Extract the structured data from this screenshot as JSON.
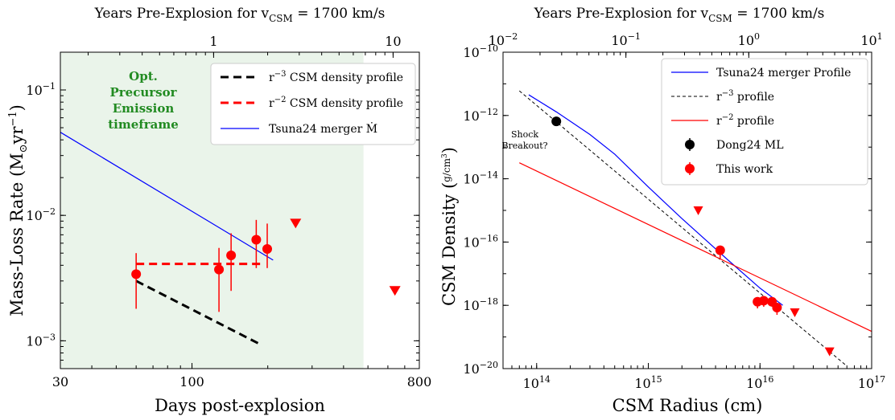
{
  "chart_data": [
    {
      "type": "scatter",
      "title": "",
      "top_axis_label": "Years Pre-Explosion for v",
      "top_axis_sub": "CSM",
      "top_axis_suffix": " = 1700 km/s",
      "xlabel": "Days post-explosion",
      "ylabel": "Mass-Loss Rate (M",
      "ylabel_suffix": "yr",
      "ylabel_exp": "−1",
      "xscale": "log",
      "yscale": "log",
      "xlim": [
        30,
        800
      ],
      "ylim": [
        0.0006,
        0.2
      ],
      "top_xlim": [
        0.14,
        14
      ],
      "x_ticks": [
        {
          "v": 30,
          "t": "30"
        },
        {
          "v": 100,
          "t": "100"
        },
        {
          "v": 800,
          "t": "800"
        }
      ],
      "y_ticks": [
        {
          "v": 0.001,
          "b": "10",
          "e": "−3"
        },
        {
          "v": 0.01,
          "b": "10",
          "e": "−2"
        },
        {
          "v": 0.1,
          "b": "10",
          "e": "−1"
        }
      ],
      "top_ticks": [
        {
          "v": 1,
          "t": "1"
        },
        {
          "v": 10,
          "t": "10"
        }
      ],
      "shaded_region": {
        "x": [
          30,
          480
        ],
        "color": "#eaf4ea"
      },
      "annotation": [
        "Opt.",
        "Precursor",
        "Emission",
        "timeframe"
      ],
      "series": [
        {
          "name": "r^-3 CSM density profile",
          "style": "dashed",
          "color": "#000000",
          "x": [
            60,
            190
          ],
          "y": [
            0.003,
            0.00092
          ]
        },
        {
          "name": "r^-2 CSM density profile",
          "style": "dashed",
          "color": "#ff0000",
          "x": [
            60,
            190
          ],
          "y": [
            0.0041,
            0.0041
          ]
        },
        {
          "name": "Tsuna24 merger Ṁ",
          "style": "solid",
          "color": "#0000ff",
          "x": [
            30,
            210
          ],
          "y": [
            0.046,
            0.0044
          ]
        }
      ],
      "points": [
        {
          "x": 60,
          "y": 0.0034,
          "lo": 0.0018,
          "hi": 0.005
        },
        {
          "x": 128,
          "y": 0.0037,
          "lo": 0.0017,
          "hi": 0.0055
        },
        {
          "x": 143,
          "y": 0.0048,
          "lo": 0.0025,
          "hi": 0.0072
        },
        {
          "x": 180,
          "y": 0.0064,
          "lo": 0.0038,
          "hi": 0.0092
        },
        {
          "x": 199,
          "y": 0.0054,
          "lo": 0.0038,
          "hi": 0.0086
        }
      ],
      "upper_limits": [
        {
          "x": 258,
          "y": 0.0086
        },
        {
          "x": 640,
          "y": 0.0025
        }
      ],
      "legend": [
        {
          "label": "r",
          "exp": "−3",
          "rest": " CSM density profile",
          "color": "#000000",
          "style": "dashed"
        },
        {
          "label": "r",
          "exp": "−2",
          "rest": " CSM density profile",
          "color": "#ff0000",
          "style": "dashed"
        },
        {
          "label": "Tsuna24 merger Ṁ",
          "exp": "",
          "rest": "",
          "color": "#0000ff",
          "style": "solid"
        }
      ]
    },
    {
      "type": "scatter",
      "title": "",
      "top_axis_label": "Years Pre-Explosion for v",
      "top_axis_sub": "CSM",
      "top_axis_suffix": " = 1700 km/s",
      "xlabel": "CSM Radius (cm)",
      "ylabel": "CSM Density (",
      "ylabel_frac_num": "g",
      "ylabel_frac_den": "cm",
      "ylabel_frac_exp": "3",
      "xscale": "log",
      "yscale": "log",
      "xlim": [
        50000000000000.0,
        1e+17
      ],
      "ylim": [
        1e-20,
        1e-10
      ],
      "top_xlim": [
        0.01,
        10
      ],
      "x_ticks": [
        {
          "v": 100000000000000.0,
          "b": "10",
          "e": "14"
        },
        {
          "v": 1000000000000000.0,
          "b": "10",
          "e": "15"
        },
        {
          "v": 1e+16,
          "b": "10",
          "e": "16"
        },
        {
          "v": 1e+17,
          "b": "10",
          "e": "17"
        }
      ],
      "y_ticks": [
        {
          "v": 1e-20,
          "b": "10",
          "e": "−20"
        },
        {
          "v": 1e-18,
          "b": "10",
          "e": "−18"
        },
        {
          "v": 1e-16,
          "b": "10",
          "e": "−16"
        },
        {
          "v": 1e-14,
          "b": "10",
          "e": "−14"
        },
        {
          "v": 1e-12,
          "b": "10",
          "e": "−12"
        },
        {
          "v": 1e-10,
          "b": "10",
          "e": "−10"
        }
      ],
      "top_ticks": [
        {
          "v": 0.01,
          "b": "10",
          "e": "−2"
        },
        {
          "v": 0.1,
          "b": "10",
          "e": "−1"
        },
        {
          "v": 1,
          "b": "10",
          "e": "0"
        },
        {
          "v": 10,
          "b": "10",
          "e": "1"
        }
      ],
      "annotation": [
        "Shock",
        "Breakout?"
      ],
      "series": [
        {
          "name": "Tsuna24 merger Profile",
          "style": "solid",
          "color": "#0000ff",
          "x": [
            85000000000000.0,
            150000000000000.0,
            300000000000000.0,
            500000000000000.0,
            1000000000000000.0,
            2000000000000000.0,
            5000000000000000.0,
            1e+16,
            1.6e+16
          ],
          "y": [
            4.5e-12,
            1.3e-12,
            2.5e-13,
            6e-14,
            5.5e-15,
            5.5e-16,
            3e-17,
            3.5e-18,
            1e-18
          ]
        },
        {
          "name": "r^-3 profile",
          "style": "dashed",
          "color": "#000000",
          "x": [
            70000000000000.0,
            6e+16
          ],
          "y": [
            6e-12,
            1.2e-20
          ]
        },
        {
          "name": "r^-2 profile",
          "style": "solid",
          "color": "#ff0000",
          "x": [
            70000000000000.0,
            1e+17
          ],
          "y": [
            3.2e-14,
            1.5e-19
          ]
        }
      ],
      "black_points": [
        {
          "x": 150000000000000.0,
          "y": 6.5e-13,
          "lo": 5.5e-13,
          "hi": 7.5e-13
        }
      ],
      "points": [
        {
          "x": 4400000000000000.0,
          "y": 5.5e-17,
          "lo": 3e-17,
          "hi": 7e-17
        },
        {
          "x": 9500000000000000.0,
          "y": 1.3e-18,
          "lo": 8e-19,
          "hi": 1.6e-18
        },
        {
          "x": 1.08e+16,
          "y": 1.4e-18,
          "lo": 9e-19,
          "hi": 1.7e-18
        },
        {
          "x": 1.28e+16,
          "y": 1.3e-18,
          "lo": 9e-19,
          "hi": 1.6e-18
        },
        {
          "x": 1.42e+16,
          "y": 8.5e-19,
          "lo": 5e-19,
          "hi": 1.2e-18
        }
      ],
      "upper_limits": [
        {
          "x": 2800000000000000.0,
          "y": 1e-15
        },
        {
          "x": 2.05e+16,
          "y": 6e-19
        },
        {
          "x": 4.2e+16,
          "y": 3.5e-20
        }
      ],
      "legend": [
        {
          "label": "Tsuna24 merger Profile",
          "exp": "",
          "rest": "",
          "color": "#0000ff",
          "style": "solid"
        },
        {
          "label": "r",
          "exp": "−3",
          "rest": " profile",
          "color": "#000000",
          "style": "dashed-thin"
        },
        {
          "label": "r",
          "exp": "−2",
          "rest": " profile",
          "color": "#ff0000",
          "style": "solid"
        },
        {
          "label": "Dong24 ML",
          "exp": "",
          "rest": "",
          "color": "#000000",
          "style": "point"
        },
        {
          "label": "This work",
          "exp": "",
          "rest": "",
          "color": "#ff0000",
          "style": "point"
        }
      ]
    }
  ]
}
